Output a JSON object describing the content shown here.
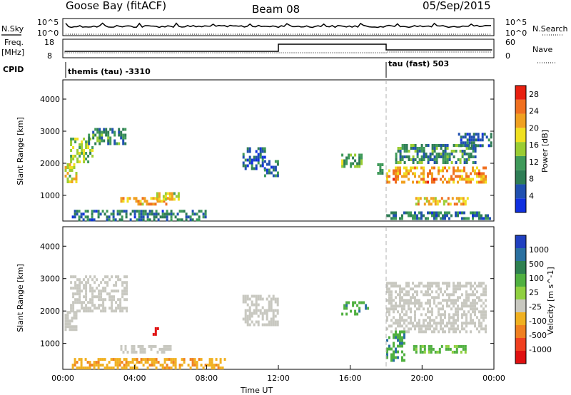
{
  "header": {
    "station": "Goose Bay (fitACF)",
    "beam": "Beam 08",
    "date": "05/Sep/2015"
  },
  "top_panels": {
    "nsky_label": "N.Sky",
    "nsearch_label": "N.Search",
    "noise_ticks": [
      "10^5",
      "10^0"
    ],
    "noise_ticks_right": [
      "10^5",
      "10^0"
    ],
    "freq_label": "Freq.",
    "freq_unit": "[MHz]",
    "freq_ticks": [
      "18",
      "8"
    ],
    "nave_label": "Nave",
    "nave_ticks": [
      "60",
      "0"
    ],
    "cpid_label": "CPID",
    "cpid_1": "themis (tau) -3310",
    "cpid_2": "tau (fast) 503"
  },
  "colors": {
    "power": [
      "#1030e0",
      "#2050b0",
      "#2e7d55",
      "#3f9a5a",
      "#9acd32",
      "#f0e020",
      "#f0a020",
      "#f07020",
      "#e82010"
    ],
    "velocity": [
      "#2040c0",
      "#2a70a0",
      "#2e8050",
      "#50b040",
      "#90d040",
      "#c8c8c0",
      "#f0b020",
      "#f08020",
      "#f04020",
      "#e01010"
    ],
    "grey_sep": "#b0b0b0"
  },
  "chart_data": [
    {
      "type": "heatmap",
      "name": "power",
      "ylabel": "Slant Range [km]",
      "yticks": [
        "1000",
        "2000",
        "3000",
        "4000"
      ],
      "ylim": [
        200,
        4600
      ],
      "xlim_hours": [
        0,
        24
      ],
      "colorbar_label": "Power [dB]",
      "colorbar_ticks": [
        "4",
        "8",
        "12",
        "16",
        "20",
        "24",
        "28"
      ],
      "colorbar_range": [
        0,
        30
      ],
      "regions": [
        {
          "t0": 0.1,
          "t1": 0.7,
          "r0": 1400,
          "r1": 2000,
          "v": 18
        },
        {
          "t0": 0.4,
          "t1": 1.6,
          "r0": 2000,
          "r1": 2800,
          "v": 14
        },
        {
          "t0": 1.4,
          "t1": 3.5,
          "r0": 2600,
          "r1": 3100,
          "v": 10
        },
        {
          "t0": 3.2,
          "t1": 6.0,
          "r0": 700,
          "r1": 950,
          "v": 20
        },
        {
          "t0": 5.2,
          "t1": 6.4,
          "r0": 850,
          "r1": 1100,
          "v": 18
        },
        {
          "t0": 0.5,
          "t1": 8.0,
          "r0": 250,
          "r1": 550,
          "v": 8
        },
        {
          "t0": 10.0,
          "t1": 11.2,
          "r0": 1800,
          "r1": 2500,
          "v": 6
        },
        {
          "t0": 11.2,
          "t1": 12.0,
          "r0": 1600,
          "r1": 2100,
          "v": 8
        },
        {
          "t0": 15.5,
          "t1": 16.6,
          "r0": 1900,
          "r1": 2300,
          "v": 12
        },
        {
          "t0": 17.5,
          "t1": 17.8,
          "r0": 1700,
          "r1": 2000,
          "v": 10
        },
        {
          "t0": 18.0,
          "t1": 23.5,
          "r0": 1400,
          "r1": 1900,
          "v": 22
        },
        {
          "t0": 18.5,
          "t1": 23.0,
          "r0": 2000,
          "r1": 2600,
          "v": 10
        },
        {
          "t0": 19.5,
          "t1": 22.5,
          "r0": 700,
          "r1": 950,
          "v": 20
        },
        {
          "t0": 22.0,
          "t1": 23.8,
          "r0": 2550,
          "r1": 2950,
          "v": 6
        },
        {
          "t0": 18.0,
          "t1": 23.8,
          "r0": 250,
          "r1": 500,
          "v": 8
        }
      ]
    },
    {
      "type": "heatmap",
      "name": "velocity",
      "ylabel": "Slant Range [km]",
      "yticks": [
        "1000",
        "2000",
        "3000",
        "4000"
      ],
      "ylim": [
        200,
        4600
      ],
      "xlim_hours": [
        0,
        24
      ],
      "xticks": [
        "00:00",
        "04:00",
        "08:00",
        "12:00",
        "16:00",
        "20:00",
        "00:00"
      ],
      "xlabel": "Time UT",
      "colorbar_label": "Velocity [m s^-1]",
      "colorbar_ticks": [
        "1000",
        "500",
        "100",
        "25",
        "-25",
        "-100",
        "-500",
        "-1000"
      ],
      "regions": [
        {
          "t0": 0.1,
          "t1": 0.7,
          "r0": 1400,
          "r1": 2000,
          "v": 0
        },
        {
          "t0": 0.4,
          "t1": 3.5,
          "r0": 2000,
          "r1": 3100,
          "v": 0
        },
        {
          "t0": 3.2,
          "t1": 6.0,
          "r0": 700,
          "r1": 950,
          "v": 0
        },
        {
          "t0": 5.0,
          "t1": 5.3,
          "r0": 1300,
          "r1": 1500,
          "v": -600
        },
        {
          "t0": 0.5,
          "t1": 9.0,
          "r0": 250,
          "r1": 550,
          "v": -80
        },
        {
          "t0": 10.0,
          "t1": 12.0,
          "r0": 1600,
          "r1": 2500,
          "v": 0
        },
        {
          "t0": 15.5,
          "t1": 17.0,
          "r0": 1900,
          "r1": 2300,
          "v": 80
        },
        {
          "t0": 18.0,
          "t1": 23.5,
          "r0": 1400,
          "r1": 2900,
          "v": 0
        },
        {
          "t0": 18.0,
          "t1": 19.0,
          "r0": 500,
          "r1": 1400,
          "v": 80
        },
        {
          "t0": 19.5,
          "t1": 22.5,
          "r0": 700,
          "r1": 950,
          "v": 60
        }
      ]
    }
  ]
}
